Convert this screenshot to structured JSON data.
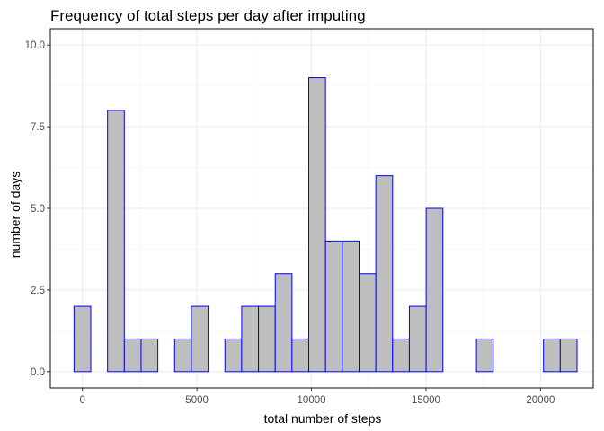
{
  "chart_data": {
    "type": "bar",
    "title": "Frequency of total steps per day after imputing",
    "xlabel": "total number of steps",
    "ylabel": "number of days",
    "xlim": [
      -1400,
      22300
    ],
    "ylim": [
      -0.5,
      10.5
    ],
    "x_ticks": [
      0,
      5000,
      10000,
      15000,
      20000
    ],
    "x_tick_labels": [
      "0",
      "5000",
      "10000",
      "15000",
      "20000"
    ],
    "y_ticks": [
      0,
      2.5,
      5,
      7.5,
      10
    ],
    "y_tick_labels": [
      "0.0",
      "2.5",
      "5.0",
      "7.5",
      "10.0"
    ],
    "grid": true,
    "bar_fill": "#bebebe",
    "bar_outline": "#0000ff",
    "bins": [
      {
        "x_start": -366,
        "x_end": 366,
        "count": 2
      },
      {
        "x_start": 366,
        "x_end": 1098,
        "count": 0
      },
      {
        "x_start": 1098,
        "x_end": 1830,
        "count": 8
      },
      {
        "x_start": 1830,
        "x_end": 2562,
        "count": 1
      },
      {
        "x_start": 2562,
        "x_end": 3294,
        "count": 1
      },
      {
        "x_start": 3294,
        "x_end": 4026,
        "count": 0
      },
      {
        "x_start": 4026,
        "x_end": 4758,
        "count": 1
      },
      {
        "x_start": 4758,
        "x_end": 5490,
        "count": 2
      },
      {
        "x_start": 5490,
        "x_end": 6222,
        "count": 0
      },
      {
        "x_start": 6222,
        "x_end": 6954,
        "count": 1
      },
      {
        "x_start": 6954,
        "x_end": 7686,
        "count": 2
      },
      {
        "x_start": 7686,
        "x_end": 8418,
        "count": 2
      },
      {
        "x_start": 8418,
        "x_end": 9150,
        "count": 3
      },
      {
        "x_start": 9150,
        "x_end": 9882,
        "count": 1
      },
      {
        "x_start": 9882,
        "x_end": 10614,
        "count": 9
      },
      {
        "x_start": 10614,
        "x_end": 11346,
        "count": 4
      },
      {
        "x_start": 11346,
        "x_end": 12078,
        "count": 4
      },
      {
        "x_start": 12078,
        "x_end": 12810,
        "count": 3
      },
      {
        "x_start": 12810,
        "x_end": 13542,
        "count": 6
      },
      {
        "x_start": 13542,
        "x_end": 14274,
        "count": 1
      },
      {
        "x_start": 14274,
        "x_end": 15006,
        "count": 2
      },
      {
        "x_start": 15006,
        "x_end": 15738,
        "count": 5
      },
      {
        "x_start": 15738,
        "x_end": 16470,
        "count": 0
      },
      {
        "x_start": 16470,
        "x_end": 17202,
        "count": 0
      },
      {
        "x_start": 17202,
        "x_end": 17934,
        "count": 1
      },
      {
        "x_start": 17934,
        "x_end": 18666,
        "count": 0
      },
      {
        "x_start": 18666,
        "x_end": 19398,
        "count": 0
      },
      {
        "x_start": 19398,
        "x_end": 20130,
        "count": 0
      },
      {
        "x_start": 20130,
        "x_end": 20862,
        "count": 1
      },
      {
        "x_start": 20862,
        "x_end": 21594,
        "count": 1
      }
    ]
  }
}
